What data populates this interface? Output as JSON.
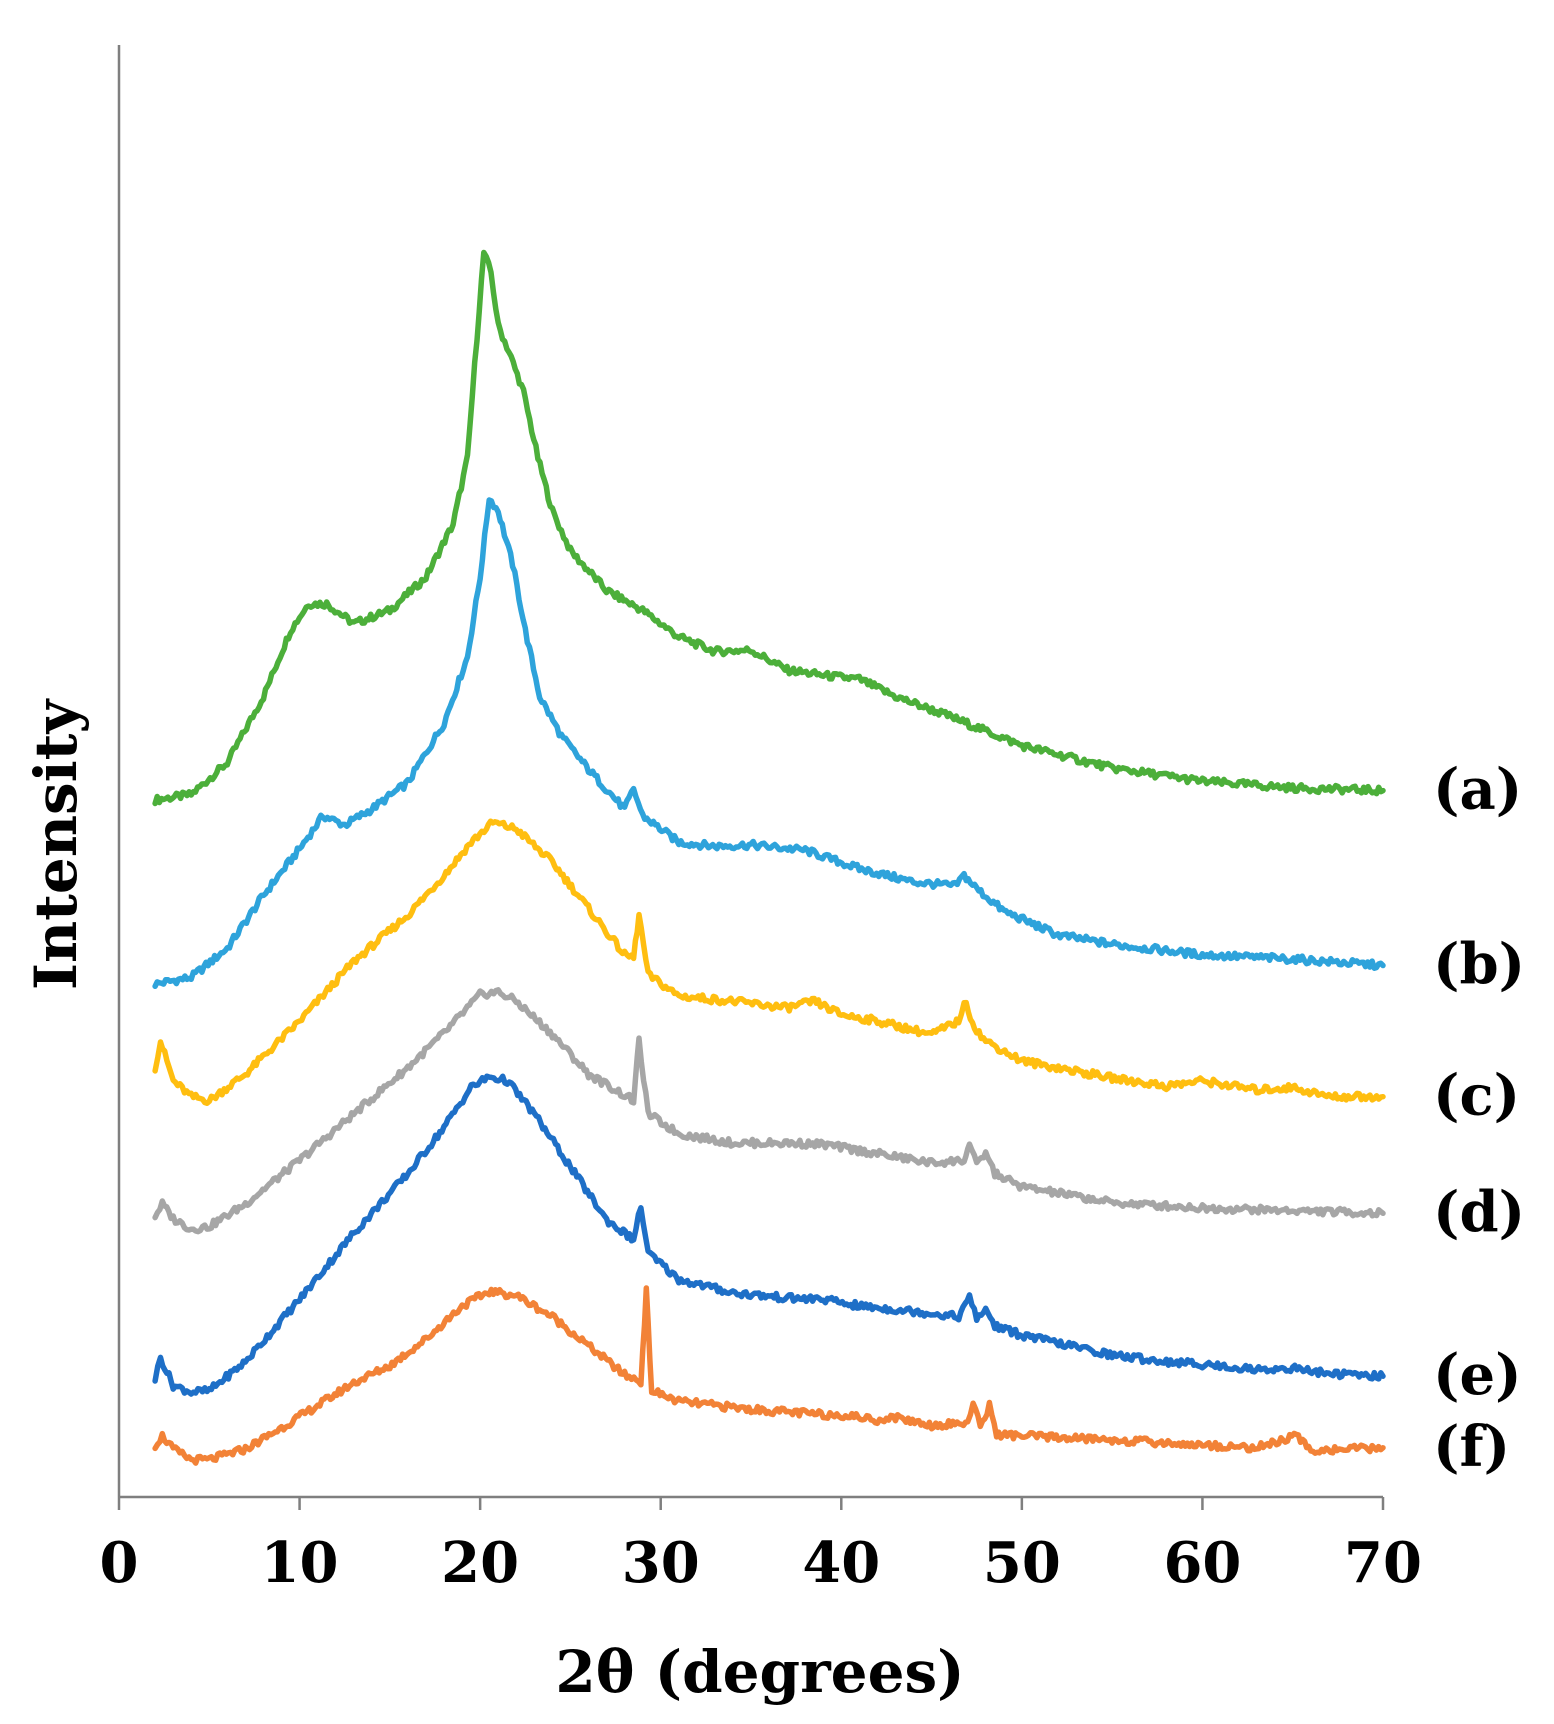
{
  "chart_data": {
    "type": "line",
    "title": "",
    "xlabel": "2θ (degrees)",
    "ylabel": "Intensity",
    "xlim": [
      0,
      70
    ],
    "ylim": [
      0,
      100
    ],
    "xticks": [
      0,
      10,
      20,
      30,
      40,
      50,
      60,
      70
    ],
    "grid": false,
    "legend": "none",
    "series": [
      {
        "name": "(a)",
        "color": "#4CAF3A",
        "points": [
          [
            2,
            50.2
          ],
          [
            4,
            50.6
          ],
          [
            6,
            53
          ],
          [
            8,
            58
          ],
          [
            9.5,
            63
          ],
          [
            10.5,
            65
          ],
          [
            11.5,
            65
          ],
          [
            13,
            63.5
          ],
          [
            15,
            64.5
          ],
          [
            17,
            67
          ],
          [
            18.5,
            71
          ],
          [
            19.3,
            76
          ],
          [
            19.7,
            83
          ],
          [
            20.2,
            91.5
          ],
          [
            20.6,
            90
          ],
          [
            21,
            86
          ],
          [
            21.6,
            84
          ],
          [
            22.4,
            81
          ],
          [
            23.2,
            76
          ],
          [
            24,
            72
          ],
          [
            25,
            69
          ],
          [
            27,
            66
          ],
          [
            29,
            64.5
          ],
          [
            31,
            62.5
          ],
          [
            33,
            61.4
          ],
          [
            35,
            61.5
          ],
          [
            37,
            60
          ],
          [
            39,
            59.6
          ],
          [
            41,
            59.3
          ],
          [
            43,
            58
          ],
          [
            46,
            56.5
          ],
          [
            50,
            54.3
          ],
          [
            55,
            52.6
          ],
          [
            60,
            51.6
          ],
          [
            65,
            51.1
          ],
          [
            70,
            50.9
          ]
        ]
      },
      {
        "name": "(b)",
        "color": "#2EA3DB",
        "points": [
          [
            2,
            36.3
          ],
          [
            4,
            36.8
          ],
          [
            6,
            39
          ],
          [
            8,
            43
          ],
          [
            10,
            46.5
          ],
          [
            11.3,
            49
          ],
          [
            12.5,
            48.3
          ],
          [
            14,
            49.5
          ],
          [
            16,
            51.5
          ],
          [
            18,
            56
          ],
          [
            19.3,
            61
          ],
          [
            20,
            67
          ],
          [
            20.5,
            73
          ],
          [
            21,
            72
          ],
          [
            21.8,
            68
          ],
          [
            22.5,
            63
          ],
          [
            23.3,
            58
          ],
          [
            24.5,
            55
          ],
          [
            26,
            52.5
          ],
          [
            28,
            49.5
          ],
          [
            28.5,
            51
          ],
          [
            29,
            49
          ],
          [
            31,
            47
          ],
          [
            33,
            46.7
          ],
          [
            35,
            46.8
          ],
          [
            38,
            46.4
          ],
          [
            41,
            45
          ],
          [
            44,
            44
          ],
          [
            46.3,
            43.7
          ],
          [
            46.8,
            44.5
          ],
          [
            47.5,
            43.5
          ],
          [
            49,
            41.8
          ],
          [
            52,
            40
          ],
          [
            55,
            39.3
          ],
          [
            60,
            38.5
          ],
          [
            64.8,
            38.2
          ],
          [
            70,
            37.7
          ]
        ]
      },
      {
        "name": "(c)",
        "color": "#FFBE10",
        "points": [
          [
            2,
            30
          ],
          [
            2.3,
            32
          ],
          [
            3,
            29
          ],
          [
            4,
            27.8
          ],
          [
            5,
            27.5
          ],
          [
            7,
            29.5
          ],
          [
            10,
            33.5
          ],
          [
            13,
            38
          ],
          [
            16,
            41.5
          ],
          [
            18,
            44.5
          ],
          [
            19.5,
            47
          ],
          [
            20.7,
            48.5
          ],
          [
            22,
            48
          ],
          [
            24,
            45.5
          ],
          [
            26,
            42
          ],
          [
            28,
            38.5
          ],
          [
            28.5,
            38.3
          ],
          [
            28.8,
            41.5
          ],
          [
            29.3,
            37
          ],
          [
            31,
            35.4
          ],
          [
            34,
            35
          ],
          [
            37,
            34.5
          ],
          [
            38.5,
            35
          ],
          [
            40,
            34
          ],
          [
            42,
            33.5
          ],
          [
            45,
            32.5
          ],
          [
            46.5,
            33.5
          ],
          [
            46.8,
            35
          ],
          [
            47.5,
            32.8
          ],
          [
            48,
            32
          ],
          [
            50,
            30.5
          ],
          [
            55,
            29.2
          ],
          [
            58,
            28.6
          ],
          [
            60,
            29
          ],
          [
            63,
            28.3
          ],
          [
            65,
            28.5
          ],
          [
            67,
            27.8
          ],
          [
            70,
            27.8
          ]
        ]
      },
      {
        "name": "(d)",
        "color": "#A6A6A6",
        "points": [
          [
            2,
            18.8
          ],
          [
            2.4,
            19.7
          ],
          [
            3,
            18.6
          ],
          [
            4,
            17.8
          ],
          [
            5,
            18
          ],
          [
            7,
            19.7
          ],
          [
            10,
            23
          ],
          [
            13,
            26.5
          ],
          [
            16,
            30
          ],
          [
            18,
            32.6
          ],
          [
            20,
            35.5
          ],
          [
            21,
            35.7
          ],
          [
            22,
            35
          ],
          [
            24,
            32.5
          ],
          [
            26,
            29.5
          ],
          [
            28.5,
            27.5
          ],
          [
            28.8,
            32
          ],
          [
            29.3,
            26.5
          ],
          [
            31,
            25
          ],
          [
            34,
            24.3
          ],
          [
            37,
            24.3
          ],
          [
            39,
            24.2
          ],
          [
            42,
            23.5
          ],
          [
            45,
            22.8
          ],
          [
            46.8,
            23
          ],
          [
            47.1,
            24.2
          ],
          [
            47.5,
            22.6
          ],
          [
            48,
            23.6
          ],
          [
            48.5,
            22
          ],
          [
            50,
            21
          ],
          [
            55,
            19.8
          ],
          [
            60,
            19.4
          ],
          [
            65,
            19.2
          ],
          [
            70,
            19
          ]
        ]
      },
      {
        "name": "(e)",
        "color": "#1E6FC7",
        "points": [
          [
            2,
            6.5
          ],
          [
            2.3,
            8.1
          ],
          [
            3,
            6
          ],
          [
            4,
            5.5
          ],
          [
            5,
            5.6
          ],
          [
            7,
            7.8
          ],
          [
            10,
            12.5
          ],
          [
            13,
            17.5
          ],
          [
            16,
            22
          ],
          [
            18,
            25.5
          ],
          [
            19.5,
            28.5
          ],
          [
            20.5,
            29.3
          ],
          [
            21.5,
            29
          ],
          [
            23,
            26.5
          ],
          [
            25,
            22.5
          ],
          [
            27,
            18.5
          ],
          [
            28.5,
            17
          ],
          [
            28.9,
            19.5
          ],
          [
            29.3,
            16
          ],
          [
            31,
            14
          ],
          [
            34,
            13
          ],
          [
            37,
            12.6
          ],
          [
            39,
            12.5
          ],
          [
            41,
            12
          ],
          [
            44,
            11.6
          ],
          [
            46.5,
            11.2
          ],
          [
            47.1,
            12.7
          ],
          [
            47.5,
            11
          ],
          [
            48,
            11.8
          ],
          [
            48.5,
            10.5
          ],
          [
            50,
            9.8
          ],
          [
            55,
            8.3
          ],
          [
            58,
            7.8
          ],
          [
            60,
            7.6
          ],
          [
            63,
            7.2
          ],
          [
            65,
            7.3
          ],
          [
            67,
            6.9
          ],
          [
            70,
            6.7
          ]
        ]
      },
      {
        "name": "(f)",
        "color": "#F28237",
        "points": [
          [
            2,
            1.5
          ],
          [
            2.4,
            2.2
          ],
          [
            3,
            1.2
          ],
          [
            4,
            0.4
          ],
          [
            5,
            0.4
          ],
          [
            7,
            1.2
          ],
          [
            9,
            2.8
          ],
          [
            11,
            4.5
          ],
          [
            13,
            6.2
          ],
          [
            15,
            7.5
          ],
          [
            17,
            9.5
          ],
          [
            19,
            12
          ],
          [
            20.5,
            13.1
          ],
          [
            22,
            12.8
          ],
          [
            24,
            11.2
          ],
          [
            26,
            9
          ],
          [
            28,
            6.8
          ],
          [
            28.9,
            6.3
          ],
          [
            29.2,
            13.1
          ],
          [
            29.5,
            5.6
          ],
          [
            31,
            4.8
          ],
          [
            35,
            4.2
          ],
          [
            39,
            3.8
          ],
          [
            40,
            3.8
          ],
          [
            42,
            3.4
          ],
          [
            43,
            3.6
          ],
          [
            45,
            3
          ],
          [
            47,
            3.2
          ],
          [
            47.3,
            4.6
          ],
          [
            47.7,
            2.9
          ],
          [
            48.2,
            4.5
          ],
          [
            48.6,
            2.3
          ],
          [
            50,
            2.2
          ],
          [
            55,
            1.9
          ],
          [
            60,
            1.5
          ],
          [
            63,
            1.3
          ],
          [
            65.2,
            2.2
          ],
          [
            66,
            1.1
          ],
          [
            70,
            1.3
          ]
        ]
      }
    ]
  }
}
